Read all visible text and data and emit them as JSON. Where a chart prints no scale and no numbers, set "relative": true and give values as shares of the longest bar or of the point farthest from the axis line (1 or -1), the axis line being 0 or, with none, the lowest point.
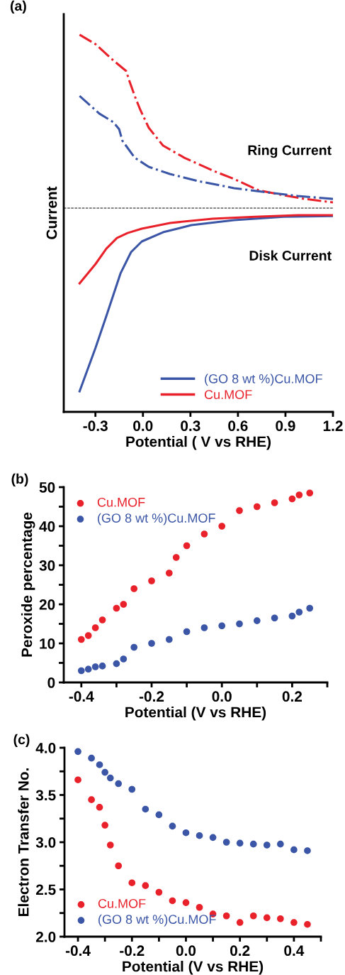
{
  "chart_data": [
    {
      "type": "line",
      "title": "(a)",
      "xlabel": "Potential ( V vs RHE)",
      "ylabel": "Current",
      "relative": true,
      "xlim": [
        -0.5,
        1.2
      ],
      "xticks": [
        -0.3,
        {
          "value": 0.0,
          "label": "0.0"
        },
        0.3,
        0.6,
        0.9,
        1.2
      ],
      "annotations": [
        "Ring Current",
        "Disk Current"
      ],
      "ref_lines": [
        {
          "axis": "y",
          "value": 0,
          "color": "#000000",
          "line_style": "dashed"
        }
      ],
      "legend": "bottom right",
      "grid": false,
      "tick_labels": "x",
      "series": [
        {
          "name": "(GO 8 wt %)Cu.MOF",
          "color": "#3b56a6",
          "line_style": "solid",
          "x": [
            -0.4,
            -0.3,
            -0.231,
            -0.142,
            -0.075,
            -0.007,
            0.127,
            0.306,
            0.575,
            0.888,
            1.2
          ],
          "values": [
            -1.0,
            -0.764,
            -0.589,
            -0.357,
            -0.24,
            -0.182,
            -0.132,
            -0.093,
            -0.066,
            -0.047,
            -0.043
          ]
        },
        {
          "name": "Cu.MOF",
          "color": "#e8212a",
          "line_style": "solid",
          "x": [
            -0.4,
            -0.3,
            -0.231,
            -0.164,
            -0.097,
            -0.007,
            0.172,
            0.44,
            0.709,
            0.978,
            1.2
          ],
          "values": [
            -0.411,
            -0.306,
            -0.221,
            -0.163,
            -0.136,
            -0.112,
            -0.081,
            -0.058,
            -0.047,
            -0.039,
            -0.039
          ]
        },
        {
          "color": "#e8212a",
          "line_style": "dashdot",
          "x": [
            -0.4,
            -0.3,
            -0.187,
            -0.106,
            -0.084,
            -0.052,
            -0.016,
            0.037,
            0.127,
            0.261,
            0.44,
            0.575,
            0.731,
            0.888,
            1.022,
            1.2
          ],
          "values": [
            0.946,
            0.895,
            0.806,
            0.748,
            0.69,
            0.612,
            0.535,
            0.438,
            0.341,
            0.275,
            0.205,
            0.159,
            0.097,
            0.07,
            0.05,
            0.031
          ]
        },
        {
          "color": "#3b56a6",
          "line_style": "dashdot",
          "x": [
            -0.4,
            -0.276,
            -0.187,
            -0.15,
            -0.13,
            -0.052,
            0.037,
            0.17,
            0.35,
            0.575,
            0.754,
            0.978,
            1.2
          ],
          "values": [
            0.612,
            0.516,
            0.469,
            0.43,
            0.368,
            0.275,
            0.225,
            0.186,
            0.147,
            0.109,
            0.089,
            0.066,
            0.05
          ]
        }
      ]
    },
    {
      "type": "scatter",
      "title": "(b)",
      "xlabel": "Potential (V vs RHE)",
      "ylabel": "Peroxide percentage",
      "xlim": [
        -0.45,
        0.3
      ],
      "ylim": [
        0,
        50
      ],
      "xticks": [
        -0.4,
        {
          "value": -0.3,
          "label": null
        },
        -0.2,
        {
          "value": -0.1,
          "label": null
        },
        {
          "value": 0.0,
          "label": "0.0"
        },
        {
          "value": 0.1,
          "label": null
        },
        0.2,
        {
          "value": 0.3,
          "label": null
        }
      ],
      "yticks": [
        0,
        {
          "value": 5,
          "label": null
        },
        10,
        {
          "value": 15,
          "label": null
        },
        20,
        {
          "value": 25,
          "label": null
        },
        30,
        {
          "value": 35,
          "label": null
        },
        40,
        {
          "value": 45,
          "label": null
        },
        50
      ],
      "legend": "top left",
      "grid": false,
      "marker": "circle",
      "series": [
        {
          "name": "Cu.MOF",
          "color": "#e8212a",
          "x": [
            -0.4,
            -0.38,
            -0.36,
            -0.34,
            -0.3,
            -0.28,
            -0.25,
            -0.2,
            -0.15,
            -0.13,
            -0.1,
            -0.05,
            0.0,
            0.05,
            0.1,
            0.15,
            0.2,
            0.22,
            0.25
          ],
          "values": [
            11,
            12,
            14,
            16,
            19,
            20,
            24,
            26,
            28,
            32,
            35,
            38,
            40,
            44,
            45,
            46,
            47,
            48,
            48.5
          ]
        },
        {
          "name": "(GO 8 wt %)Cu.MOF",
          "color": "#3b56a6",
          "x": [
            -0.4,
            -0.38,
            -0.36,
            -0.34,
            -0.3,
            -0.28,
            -0.25,
            -0.2,
            -0.15,
            -0.1,
            -0.05,
            0.0,
            0.05,
            0.1,
            0.15,
            0.2,
            0.22,
            0.25
          ],
          "values": [
            3,
            3.4,
            4,
            4.2,
            4.8,
            6,
            9,
            10,
            11,
            13,
            14,
            14.5,
            15,
            15.8,
            16.5,
            17,
            18,
            19
          ]
        }
      ]
    },
    {
      "type": "scatter",
      "title": "(c)",
      "xlabel": "Potential (V vs RHE)",
      "ylabel": "Electron Transfer No.",
      "xlim": [
        -0.45,
        0.5
      ],
      "ylim": [
        2.0,
        4.0
      ],
      "xticks": [
        -0.4,
        {
          "value": -0.3,
          "label": null
        },
        -0.2,
        {
          "value": -0.1,
          "label": null
        },
        {
          "value": 0.0,
          "label": "0.0"
        },
        {
          "value": 0.1,
          "label": null
        },
        0.2,
        {
          "value": 0.3,
          "label": null
        },
        0.4,
        {
          "value": 0.5,
          "label": null
        }
      ],
      "yticks": [
        {
          "value": 2.0,
          "label": "2.0"
        },
        {
          "value": 2.25,
          "label": null
        },
        2.5,
        {
          "value": 2.75,
          "label": null
        },
        {
          "value": 3.0,
          "label": "3.0"
        },
        {
          "value": 3.25,
          "label": null
        },
        3.5,
        {
          "value": 3.75,
          "label": null
        },
        {
          "value": 4.0,
          "label": "4.0"
        }
      ],
      "legend": "bottom left",
      "grid": false,
      "marker": "circle",
      "series": [
        {
          "name": "Cu.MOF",
          "color": "#e8212a",
          "x": [
            -0.4,
            -0.35,
            -0.32,
            -0.3,
            -0.28,
            -0.25,
            -0.2,
            -0.15,
            -0.1,
            -0.05,
            0.0,
            0.05,
            0.1,
            0.15,
            0.2,
            0.25,
            0.3,
            0.35,
            0.4,
            0.45
          ],
          "values": [
            3.66,
            3.45,
            3.37,
            3.18,
            2.97,
            2.75,
            2.57,
            2.54,
            2.47,
            2.38,
            2.36,
            2.31,
            2.24,
            2.22,
            2.15,
            2.22,
            2.2,
            2.19,
            2.15,
            2.13
          ]
        },
        {
          "name": "(GO 8 wt %)Cu.MOF",
          "color": "#3b56a6",
          "x": [
            -0.4,
            -0.35,
            -0.32,
            -0.3,
            -0.28,
            -0.25,
            -0.2,
            -0.15,
            -0.1,
            -0.05,
            0.0,
            0.05,
            0.1,
            0.15,
            0.2,
            0.25,
            0.3,
            0.35,
            0.4,
            0.45
          ],
          "values": [
            3.96,
            3.89,
            3.82,
            3.74,
            3.68,
            3.62,
            3.56,
            3.35,
            3.29,
            3.17,
            3.1,
            3.07,
            3.05,
            3.0,
            2.99,
            2.98,
            2.97,
            2.98,
            2.92,
            2.91
          ]
        }
      ]
    }
  ]
}
